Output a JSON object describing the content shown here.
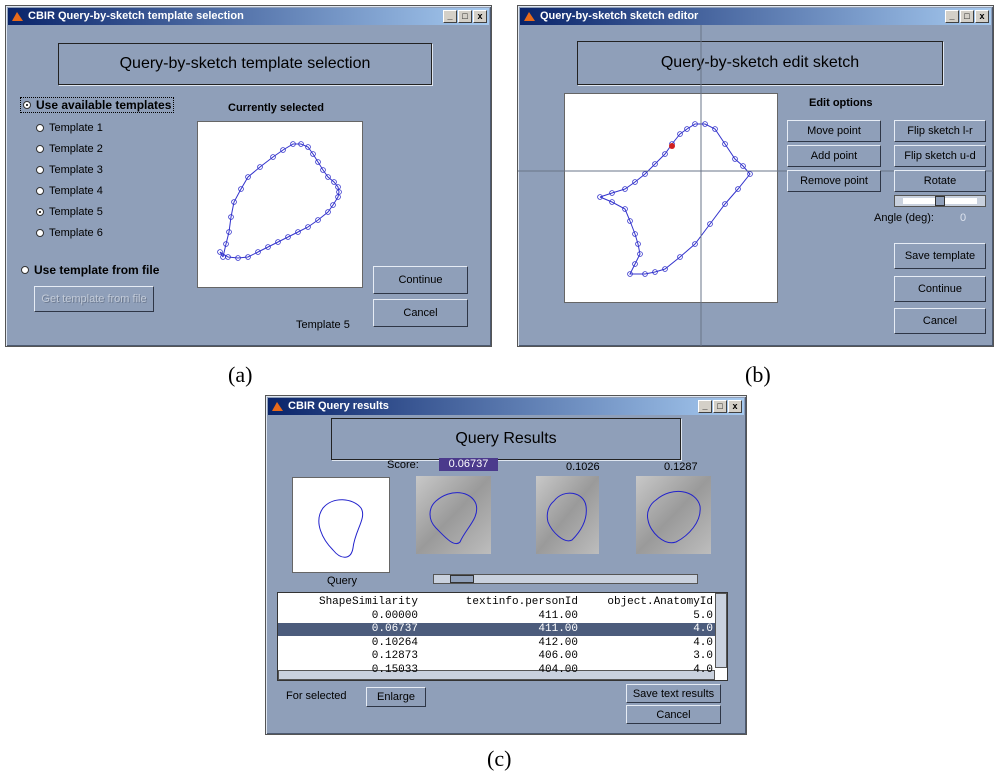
{
  "captions": {
    "a": "(a)",
    "b": "(b)",
    "c": "(c)"
  },
  "window_a": {
    "title": "CBIR Query-by-sketch template selection",
    "heading": "Query-by-sketch template selection",
    "use_available": "Use available templates",
    "templates": [
      "Template 1",
      "Template 2",
      "Template 3",
      "Template 4",
      "Template 5",
      "Template 6"
    ],
    "use_file": "Use template from file",
    "get_file_button": "Get template from file",
    "currently_selected": "Currently selected",
    "continue": "Continue",
    "cancel": "Cancel",
    "status": "Template 5"
  },
  "window_b": {
    "title": "Query-by-sketch sketch editor",
    "heading": "Query-by-sketch edit sketch",
    "edit_options": "Edit options",
    "left_buttons": [
      "Move point",
      "Add point",
      "Remove point"
    ],
    "right_buttons": [
      "Flip sketch l-r",
      "Flip sketch u-d",
      "Rotate"
    ],
    "angle_label": "Angle (deg):",
    "angle_value": "0",
    "save": "Save template",
    "continue": "Continue",
    "cancel": "Cancel"
  },
  "window_c": {
    "title": "CBIR Query results",
    "heading": "Query Results",
    "score_label": "Score:",
    "scores": [
      "0.06737",
      "0.1026",
      "0.1287"
    ],
    "query_label": "Query",
    "table": {
      "header": [
        "ShapeSimilarity",
        "textinfo.personId",
        "object.AnatomyId"
      ],
      "rows": [
        [
          "0.00000",
          "411.00",
          "5.0"
        ],
        [
          "0.06737",
          "411.00",
          "4.0"
        ],
        [
          "0.10264",
          "412.00",
          "4.0"
        ],
        [
          "0.12873",
          "406.00",
          "3.0"
        ],
        [
          "0.15033",
          "404.00",
          "4.0"
        ]
      ]
    },
    "for_selected": "For selected",
    "enlarge": "Enlarge",
    "save_text": "Save text results",
    "cancel": "Cancel"
  }
}
